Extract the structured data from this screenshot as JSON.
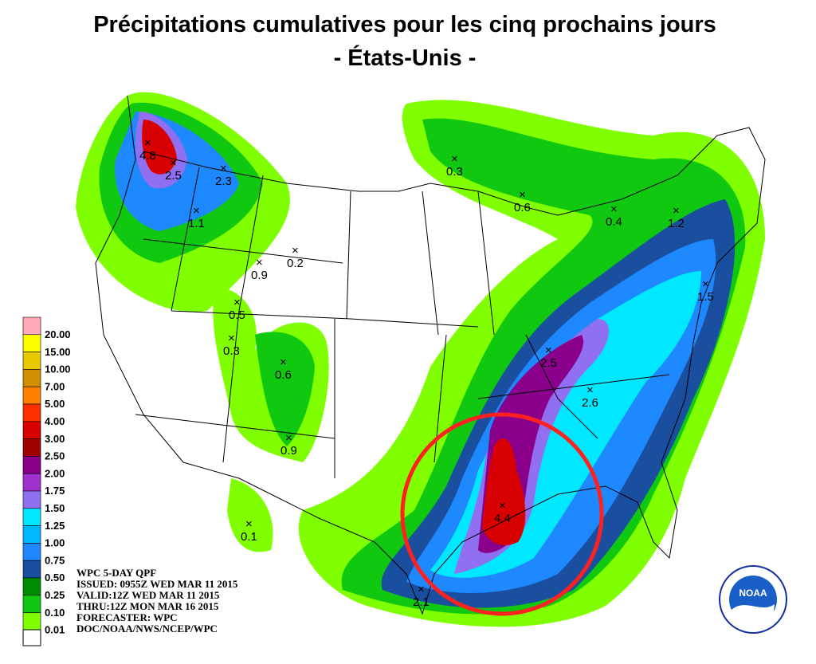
{
  "header": {
    "title": "Précipitations cumulatives pour les cinq prochains jours",
    "subtitle": "- États-Unis -"
  },
  "legend": [
    {
      "label": "20.00",
      "color": "#ffa8b8"
    },
    {
      "label": "15.00",
      "color": "#ffff00"
    },
    {
      "label": "10.00",
      "color": "#e8c800"
    },
    {
      "label": "7.00",
      "color": "#d09000"
    },
    {
      "label": "5.00",
      "color": "#ff8000"
    },
    {
      "label": "4.00",
      "color": "#ff3000"
    },
    {
      "label": "3.00",
      "color": "#d80000"
    },
    {
      "label": "2.50",
      "color": "#a00000"
    },
    {
      "label": "2.00",
      "color": "#8a008a"
    },
    {
      "label": "1.75",
      "color": "#a030d0"
    },
    {
      "label": "1.50",
      "color": "#9070f0"
    },
    {
      "label": "1.25",
      "color": "#00e8ff"
    },
    {
      "label": "1.00",
      "color": "#00b8ff"
    },
    {
      "label": "0.75",
      "color": "#1e88ff"
    },
    {
      "label": "0.50",
      "color": "#1a4fa0"
    },
    {
      "label": "0.25",
      "color": "#008c00"
    },
    {
      "label": "0.10",
      "color": "#10c810"
    },
    {
      "label": "0.01",
      "color": "#80ff00"
    }
  ],
  "points": [
    "4.8",
    "2.5",
    "2.3",
    "1.1",
    "0.3",
    "0.6",
    "0.4",
    "1.2",
    "1.5",
    "0.2",
    "0.9",
    "0.5",
    "0.3",
    "0.6",
    "0.9",
    "0.1",
    "2.5",
    "2.6",
    "4.4",
    "2.1"
  ],
  "info": [
    "WPC 5-DAY QPF",
    "ISSUED: 0955Z WED MAR 11 2015",
    "VALID:12Z WED MAR 11 2015",
    "THRU:12Z MON MAR 16 2015",
    "FORECASTER: WPC",
    "DOC/NOAA/NWS/NCEP/WPC"
  ],
  "logo": "NOAA"
}
